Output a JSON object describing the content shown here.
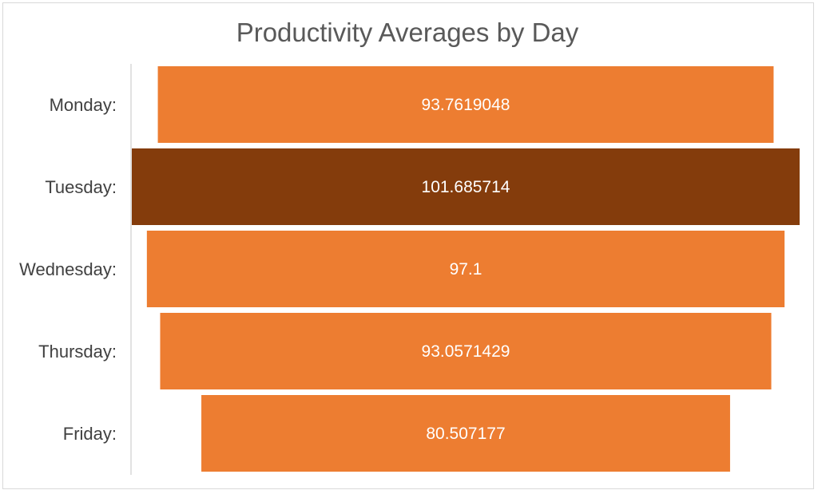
{
  "chart_data": {
    "type": "bar",
    "subtype": "funnel",
    "title": "Productivity Averages by Day",
    "categories": [
      "Monday:",
      "Tuesday:",
      "Wednesday:",
      "Thursday:",
      "Friday:"
    ],
    "values": [
      93.7619048,
      101.685714,
      97.1,
      93.0571429,
      80.507177
    ],
    "value_labels": [
      "93.7619048",
      "101.685714",
      "97.1",
      "93.0571429",
      "80.507177"
    ],
    "colors": [
      "#ED7D31",
      "#843C0C",
      "#ED7D31",
      "#ED7D31",
      "#ED7D31"
    ],
    "highlighted_category": "Tuesday:",
    "grid": false,
    "legend": "none"
  }
}
